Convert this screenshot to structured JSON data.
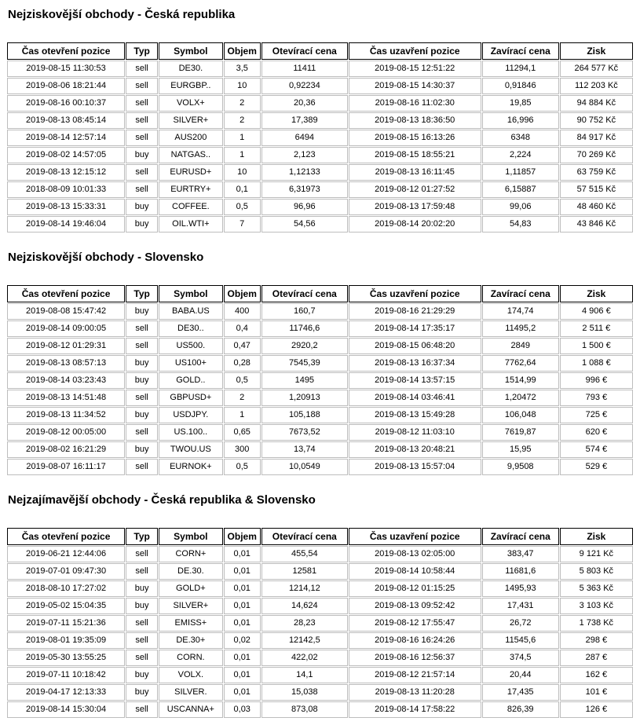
{
  "report": {
    "text_color": "#000000",
    "header_border_color": "#000000",
    "cell_border_color": "#bdbdbd",
    "background_color": "#ffffff"
  },
  "sections": [
    {
      "title": "Nejziskovější obchody - Česká republika",
      "columns": [
        "Čas otevření pozice",
        "Typ",
        "Symbol",
        "Objem",
        "Otevírací cena",
        "Čas uzavření pozice",
        "Zavírací cena",
        "Zisk"
      ],
      "rows": [
        [
          "2019-08-15 11:30:53",
          "sell",
          "DE30.",
          "3,5",
          "11411",
          "2019-08-15 12:51:22",
          "11294,1",
          "264 577 Kč"
        ],
        [
          "2019-08-06 18:21:44",
          "sell",
          "EURGBP..",
          "10",
          "0,92234",
          "2019-08-15 14:30:37",
          "0,91846",
          "112 203 Kč"
        ],
        [
          "2019-08-16 00:10:37",
          "sell",
          "VOLX+",
          "2",
          "20,36",
          "2019-08-16 11:02:30",
          "19,85",
          "94 884 Kč"
        ],
        [
          "2019-08-13 08:45:14",
          "sell",
          "SILVER+",
          "2",
          "17,389",
          "2019-08-13 18:36:50",
          "16,996",
          "90 752 Kč"
        ],
        [
          "2019-08-14 12:57:14",
          "sell",
          "AUS200",
          "1",
          "6494",
          "2019-08-15 16:13:26",
          "6348",
          "84 917 Kč"
        ],
        [
          "2019-08-02 14:57:05",
          "buy",
          "NATGAS..",
          "1",
          "2,123",
          "2019-08-15 18:55:21",
          "2,224",
          "70 269 Kč"
        ],
        [
          "2019-08-13 12:15:12",
          "sell",
          "EURUSD+",
          "10",
          "1,12133",
          "2019-08-13 16:11:45",
          "1,11857",
          "63 759 Kč"
        ],
        [
          "2018-08-09 10:01:33",
          "sell",
          "EURTRY+",
          "0,1",
          "6,31973",
          "2019-08-12 01:27:52",
          "6,15887",
          "57 515 Kč"
        ],
        [
          "2019-08-13 15:33:31",
          "buy",
          "COFFEE.",
          "0,5",
          "96,96",
          "2019-08-13 17:59:48",
          "99,06",
          "48 460 Kč"
        ],
        [
          "2019-08-14 19:46:04",
          "buy",
          "OIL.WTI+",
          "7",
          "54,56",
          "2019-08-14 20:02:20",
          "54,83",
          "43 846 Kč"
        ]
      ]
    },
    {
      "title": "Nejziskovější obchody - Slovensko",
      "columns": [
        "Čas otevření pozice",
        "Typ",
        "Symbol",
        "Objem",
        "Otevírací cena",
        "Čas uzavření pozice",
        "Zavírací cena",
        "Zisk"
      ],
      "rows": [
        [
          "2019-08-08 15:47:42",
          "buy",
          "BABA.US",
          "400",
          "160,7",
          "2019-08-16 21:29:29",
          "174,74",
          "4 906 €"
        ],
        [
          "2019-08-14 09:00:05",
          "sell",
          "DE30..",
          "0,4",
          "11746,6",
          "2019-08-14 17:35:17",
          "11495,2",
          "2 511 €"
        ],
        [
          "2019-08-12 01:29:31",
          "sell",
          "US500.",
          "0,47",
          "2920,2",
          "2019-08-15 06:48:20",
          "2849",
          "1 500 €"
        ],
        [
          "2019-08-13 08:57:13",
          "buy",
          "US100+",
          "0,28",
          "7545,39",
          "2019-08-13 16:37:34",
          "7762,64",
          "1 088 €"
        ],
        [
          "2019-08-14 03:23:43",
          "buy",
          "GOLD..",
          "0,5",
          "1495",
          "2019-08-14 13:57:15",
          "1514,99",
          "996 €"
        ],
        [
          "2019-08-13 14:51:48",
          "sell",
          "GBPUSD+",
          "2",
          "1,20913",
          "2019-08-14 03:46:41",
          "1,20472",
          "793 €"
        ],
        [
          "2019-08-13 11:34:52",
          "buy",
          "USDJPY.",
          "1",
          "105,188",
          "2019-08-13 15:49:28",
          "106,048",
          "725 €"
        ],
        [
          "2019-08-12 00:05:00",
          "sell",
          "US.100..",
          "0,65",
          "7673,52",
          "2019-08-12 11:03:10",
          "7619,87",
          "620 €"
        ],
        [
          "2019-08-02 16:21:29",
          "buy",
          "TWOU.US",
          "300",
          "13,74",
          "2019-08-13 20:48:21",
          "15,95",
          "574 €"
        ],
        [
          "2019-08-07 16:11:17",
          "sell",
          "EURNOK+",
          "0,5",
          "10,0549",
          "2019-08-13 15:57:04",
          "9,9508",
          "529 €"
        ]
      ]
    },
    {
      "title": "Nejzajímavější obchody - Česká republika & Slovensko",
      "columns": [
        "Čas otevření pozice",
        "Typ",
        "Symbol",
        "Objem",
        "Otevírací cena",
        "Čas uzavření pozice",
        "Zavírací cena",
        "Zisk"
      ],
      "rows": [
        [
          "2019-06-21 12:44:06",
          "sell",
          "CORN+",
          "0,01",
          "455,54",
          "2019-08-13 02:05:00",
          "383,47",
          "9 121 Kč"
        ],
        [
          "2019-07-01 09:47:30",
          "sell",
          "DE.30.",
          "0,01",
          "12581",
          "2019-08-14 10:58:44",
          "11681,6",
          "5 803 Kč"
        ],
        [
          "2018-08-10 17:27:02",
          "buy",
          "GOLD+",
          "0,01",
          "1214,12",
          "2019-08-12 01:15:25",
          "1495,93",
          "5 363 Kč"
        ],
        [
          "2019-05-02 15:04:35",
          "buy",
          "SILVER+",
          "0,01",
          "14,624",
          "2019-08-13 09:52:42",
          "17,431",
          "3 103 Kč"
        ],
        [
          "2019-07-11 15:21:36",
          "sell",
          "EMISS+",
          "0,01",
          "28,23",
          "2019-08-12 17:55:47",
          "26,72",
          "1 738 Kč"
        ],
        [
          "2019-08-01 19:35:09",
          "sell",
          "DE.30+",
          "0,02",
          "12142,5",
          "2019-08-16 16:24:26",
          "11545,6",
          "298 €"
        ],
        [
          "2019-05-30 13:55:25",
          "sell",
          "CORN.",
          "0,01",
          "422,02",
          "2019-08-16 12:56:37",
          "374,5",
          "287 €"
        ],
        [
          "2019-07-11 10:18:42",
          "buy",
          "VOLX.",
          "0,01",
          "14,1",
          "2019-08-12 21:57:14",
          "20,44",
          "162 €"
        ],
        [
          "2019-04-17 12:13:33",
          "buy",
          "SILVER.",
          "0,01",
          "15,038",
          "2019-08-13 11:20:28",
          "17,435",
          "101 €"
        ],
        [
          "2019-08-14 15:30:04",
          "sell",
          "USCANNA+",
          "0,03",
          "873,08",
          "2019-08-14 17:58:22",
          "826,39",
          "126 €"
        ]
      ]
    }
  ]
}
